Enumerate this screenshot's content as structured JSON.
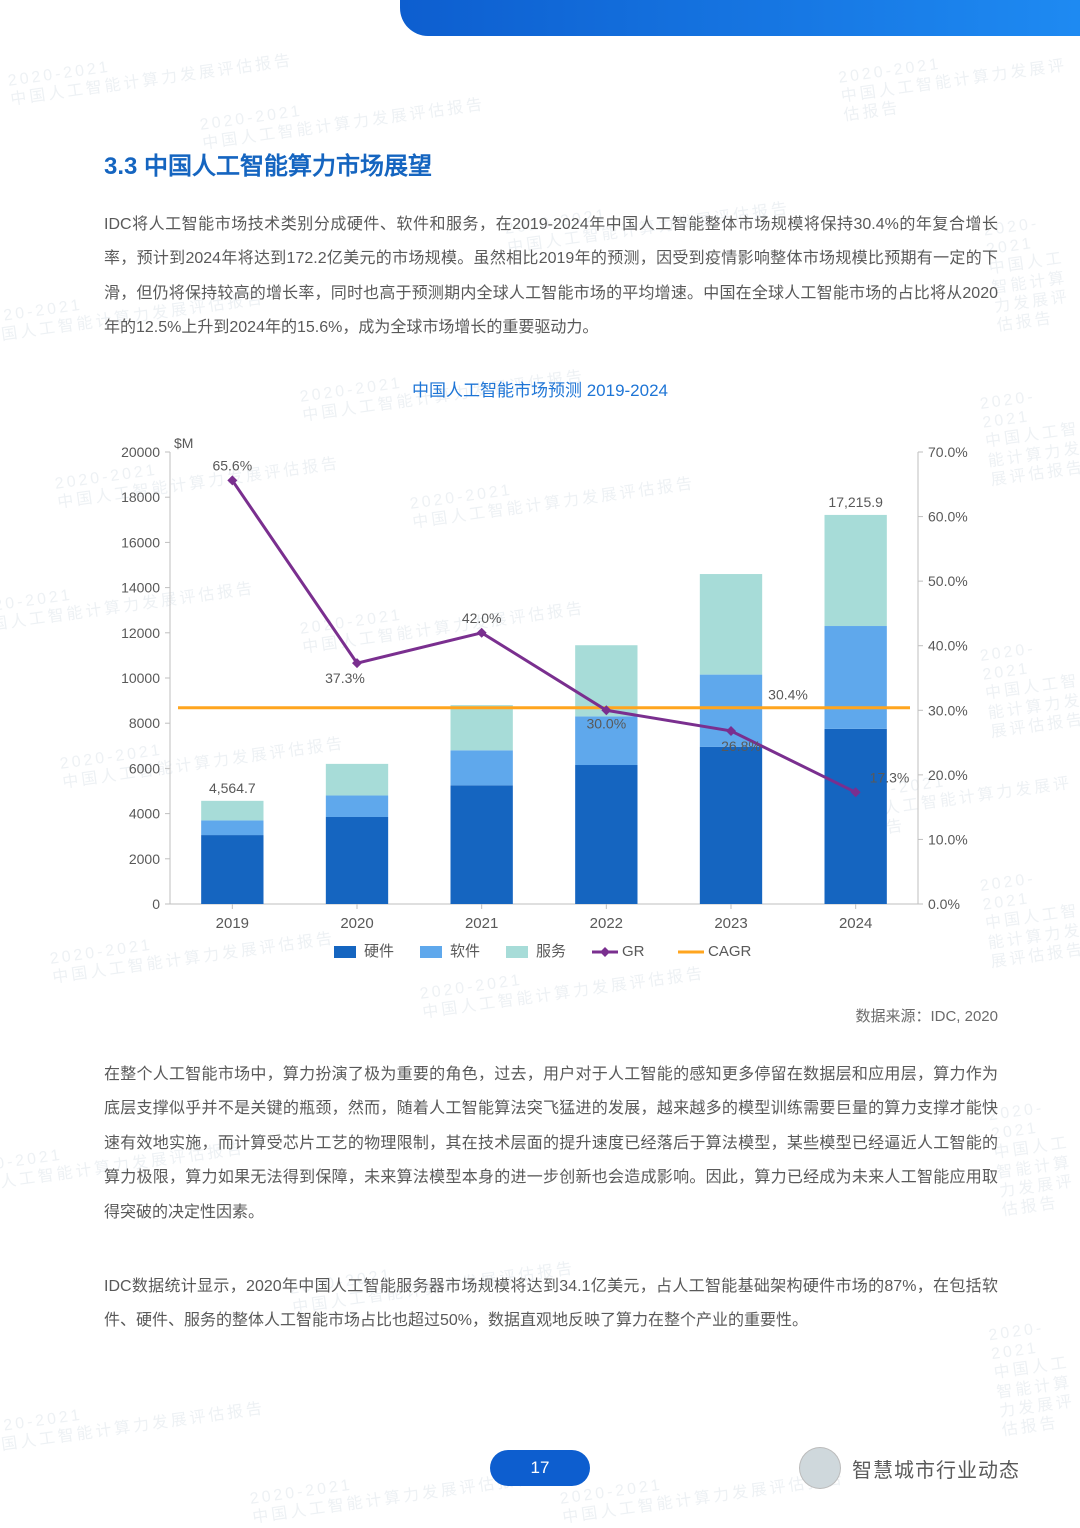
{
  "section_title": "3.3 中国人工智能算力市场展望",
  "para1": "IDC将人工智能市场技术类别分成硬件、软件和服务，在2019-2024年中国人工智能整体市场规模将保持30.4%的年复合增长率，预计到2024年将达到172.2亿美元的市场规模。虽然相比2019年的预测，因受到疫情影响整体市场规模比预期有一定的下滑，但仍将保持较高的增长率，同时也高于预测期内全球人工智能市场的平均增速。中国在全球人工智能市场的占比将从2020年的12.5%上升到2024年的15.6%，成为全球市场增长的重要驱动力。",
  "chart_title": "中国人工智能市场预测 2019-2024",
  "source": "数据来源：IDC, 2020",
  "para2": "在整个人工智能市场中，算力扮演了极为重要的角色，过去，用户对于人工智能的感知更多停留在数据层和应用层，算力作为底层支撑似乎并不是关键的瓶颈，然而，随着人工智能算法突飞猛进的发展，越来越多的模型训练需要巨量的算力支撑才能快速有效地实施，而计算受芯片工艺的物理限制，其在技术层面的提升速度已经落后于算法模型，某些模型已经逼近人工智能的算力极限，算力如果无法得到保障，未来算法模型本身的进一步创新也会造成影响。因此，算力已经成为未来人工智能应用取得突破的决定性因素。",
  "para3": "IDC数据统计显示，2020年中国人工智能服务器市场规模将达到34.1亿美元，占人工智能基础架构硬件市场的87%，在包括软件、硬件、服务的整体人工智能市场占比也超过50%，数据直观地反映了算力在整个产业的重要性。",
  "page_number": "17",
  "footer_tag": "智慧城市行业动态",
  "watermark_line1": "2020-2021",
  "watermark_line2": "中国人工智能计算力发展评估报告",
  "chart": {
    "type": "stacked-bar + dual-line",
    "y_left_unit": "$M",
    "categories": [
      "2019",
      "2020",
      "2021",
      "2022",
      "2023",
      "2024"
    ],
    "y_left_max": 20000,
    "y_left_step": 2000,
    "y_right_max": 70.0,
    "y_right_step": 10.0,
    "stacks": [
      {
        "name": "硬件",
        "color": "#1565c0",
        "values": [
          3050,
          3850,
          5250,
          6150,
          6950,
          7750
        ]
      },
      {
        "name": "软件",
        "color": "#5fa8ec",
        "values": [
          650,
          950,
          1550,
          2150,
          3200,
          4550
        ]
      },
      {
        "name": "服务",
        "color": "#a7dcd8",
        "values": [
          865,
          1400,
          2000,
          3150,
          4450,
          4916
        ]
      }
    ],
    "totals_label": {
      "0": "4,564.7",
      "5": "17,215.9"
    },
    "lines": {
      "GR": {
        "color": "#7a2f8f",
        "values": [
          65.6,
          37.3,
          42.0,
          30.0,
          26.8,
          17.3
        ]
      },
      "CAGR": {
        "color": "#ffa51f",
        "value": 30.4,
        "label": "30.4%"
      }
    },
    "gr_labels": {
      "0": "65.6%",
      "1": "37.3%",
      "2": "42.0%",
      "3": "30.0%",
      "4": "26.8%",
      "5": "17.3%"
    },
    "legend": [
      "硬件",
      "软件",
      "服务",
      "GR",
      "CAGR"
    ],
    "axis_color": "#bfbfbf",
    "tick_color": "#bfbfbf",
    "text_color": "#595959",
    "bar_width_ratio": 0.5,
    "label_fontsize": 14
  }
}
